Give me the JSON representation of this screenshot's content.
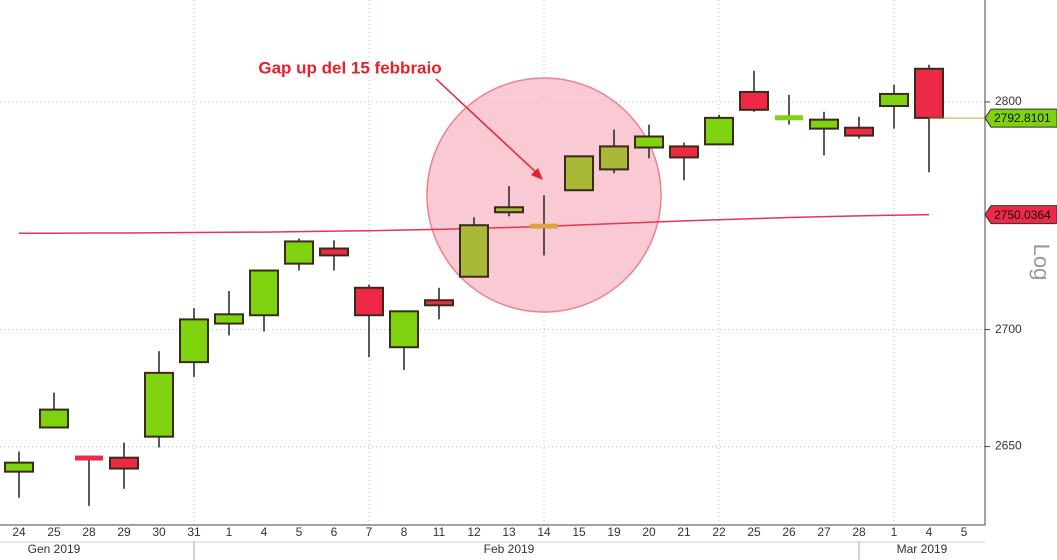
{
  "chart_data": {
    "type": "candlestick",
    "log_scale": true,
    "axis_label": "Log",
    "annotation": "Gap up del 15 febbraio",
    "categories": [
      "24",
      "25",
      "28",
      "29",
      "30",
      "31",
      "1",
      "4",
      "5",
      "6",
      "7",
      "8",
      "11",
      "12",
      "13",
      "14",
      "15",
      "19",
      "20",
      "21",
      "22",
      "25",
      "26",
      "27",
      "28",
      "1",
      "4",
      "5"
    ],
    "months": [
      {
        "label": "Gen 2019",
        "index": 1
      },
      {
        "label": "Feb 2019",
        "index": 14
      },
      {
        "label": "Mar 2019",
        "index": 25.8
      }
    ],
    "open": [
      2639.4,
      2658.1,
      2645.3,
      2645.3,
      2654.2,
      2686.0,
      2702.6,
      2706.2,
      2728.6,
      2735.2,
      2718.1,
      2692.4,
      2712.7,
      2722.9,
      2753.3,
      2745.4,
      2760.8,
      2770.0,
      2779.7,
      2780.2,
      2781.1,
      2804.5,
      2792.5,
      2788.1,
      2788.5,
      2798.2,
      2814.9,
      null
    ],
    "high": [
      2647.9,
      2672.9,
      2645.3,
      2651.7,
      2690.7,
      2709.3,
      2716.7,
      2725.6,
      2739.6,
      2738.8,
      2719.4,
      2707.9,
      2718.1,
      2748.9,
      2762.6,
      2758.6,
      2775.8,
      2787.7,
      2789.9,
      2781.9,
      2794.3,
      2814.0,
      2803.2,
      2795.6,
      2793.4,
      2807.7,
      2816.7,
      null
    ],
    "low": [
      2628.4,
      2658.1,
      2625.0,
      2632.2,
      2649.6,
      2679.7,
      2697.5,
      2699.2,
      2725.6,
      2725.6,
      2688.1,
      2682.6,
      2704.4,
      2722.9,
      2749.3,
      2732.2,
      2760.8,
      2768.3,
      2774.9,
      2765.2,
      2781.1,
      2795.6,
      2789.9,
      2776.2,
      2783.7,
      2788.1,
      2768.7,
      null
    ],
    "close": [
      2643.2,
      2665.7,
      2645.0,
      2640.7,
      2681.4,
      2704.4,
      2706.6,
      2725.6,
      2738.3,
      2732.2,
      2706.2,
      2707.9,
      2710.5,
      2745.4,
      2751.1,
      2744.6,
      2775.8,
      2780.2,
      2784.6,
      2775.3,
      2792.9,
      2796.5,
      2793.4,
      2792.1,
      2785.0,
      2803.6,
      2792.9,
      null
    ],
    "colors": [
      "#7fd20e",
      "#7fd20e",
      "#ee2947",
      "#ee2947",
      "#7fd20e",
      "#7fd20e",
      "#7fd20e",
      "#7fd20e",
      "#7fd20e",
      "#ee2947",
      "#ee2947",
      "#7fd20e",
      "#ee2947",
      "#aab83a",
      "#aab83a",
      "#d9a441",
      "#aab83a",
      "#aab83a",
      "#7fd20e",
      "#ee2947",
      "#7fd20e",
      "#ee2947",
      "#7fd20e",
      "#7fd20e",
      "#ee2947",
      "#7fd20e",
      "#ee2947",
      null
    ],
    "moving_average": {
      "color": "#e8354f",
      "values": [
        2741.9,
        2741.9,
        2742.0,
        2742.0,
        2742.1,
        2742.2,
        2742.3,
        2742.4,
        2742.6,
        2742.8,
        2743.0,
        2743.3,
        2743.6,
        2744.0,
        2744.4,
        2744.9,
        2745.5,
        2746.1,
        2746.7,
        2747.3,
        2747.8,
        2748.3,
        2748.8,
        2749.2,
        2749.5,
        2749.8,
        2750.0364,
        null
      ]
    },
    "price_tags": [
      {
        "value": 2792.8101,
        "color": "#7fd20e",
        "line": "#e0a030"
      },
      {
        "value": 2750.0364,
        "color": "#ee2947",
        "line": null
      }
    ],
    "ylim": [
      2617,
      2846
    ],
    "yticks": [
      2650,
      2700,
      2800
    ],
    "grid": true
  }
}
